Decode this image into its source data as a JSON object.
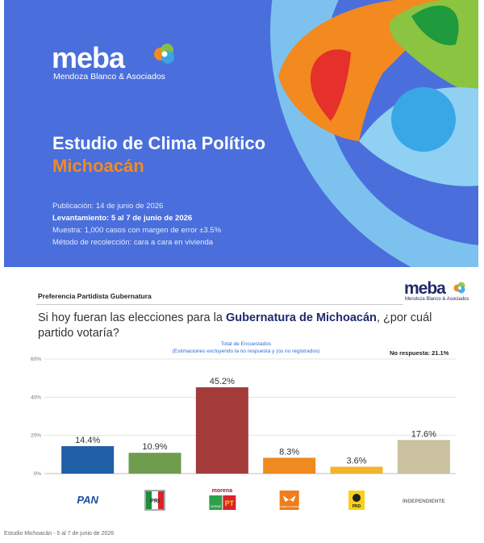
{
  "cover": {
    "logo": "meba",
    "logo_sub": "Mendoza Blanco & Asociados",
    "title": "Estudio de Clima Político",
    "subtitle": "Michoacán",
    "lines": [
      {
        "text": "Publicación: 14 de junio de 2026",
        "bold": false
      },
      {
        "text": "Levantamiento: 5 al 7 de junio de 2026",
        "bold": true
      },
      {
        "text": "Muestra: 1,000 casos con margen de error ±3.5%",
        "bold": false
      },
      {
        "text": "Método de recolección: cara a cara en vivienda",
        "bold": false
      }
    ],
    "colors": {
      "background": "#4a6fdc",
      "accent": "#f08a24"
    }
  },
  "slide": {
    "section_title": "Preferencia Partidista Gubernatura",
    "logo": "meba",
    "logo_sub": "Mendoza Blanco & Asociados",
    "question_pre": "Si hoy fueran las elecciones para la ",
    "question_bold": "Gubernatura de Michoacán",
    "question_post": ", ¿por cuál partido votaría?",
    "legend_line1": "Total de Encuestados",
    "legend_line2": "(Estimaciones excluyendo la no respuesta y (os no registrados)",
    "no_response": "No respuesta: 21.1%"
  },
  "chart_data": {
    "type": "bar",
    "categories": [
      "PAN",
      "PRI",
      "morena / VERDE / PT",
      "MOVIMIENTO CIUDADANO",
      "PRD",
      "INDEPENDIENTE"
    ],
    "values": [
      14.4,
      10.9,
      45.2,
      8.3,
      3.6,
      17.6
    ],
    "value_labels": [
      "14.4%",
      "10.9%",
      "45.2%",
      "8.3%",
      "3.6%",
      "17.6%"
    ],
    "colors": [
      "#1f5fa8",
      "#6f9c4f",
      "#a33b3b",
      "#ef8a1e",
      "#f2b42a",
      "#c9c1a0"
    ],
    "ylim": [
      0,
      60
    ],
    "yticks": [
      "0%",
      "20%",
      "40%",
      "60%"
    ],
    "grid": true,
    "logo_labels": {
      "pan": "PAN",
      "pri": "PRI",
      "morena": "morena",
      "verde": "VERDE",
      "pt": "PT",
      "mc": "MOVIMIENTO CIUDADANO",
      "prd": "PRD",
      "independiente": "INDEPENDIENTE"
    }
  },
  "footer": "Estudio Michoacán - 5 al 7 de junio de 2026"
}
